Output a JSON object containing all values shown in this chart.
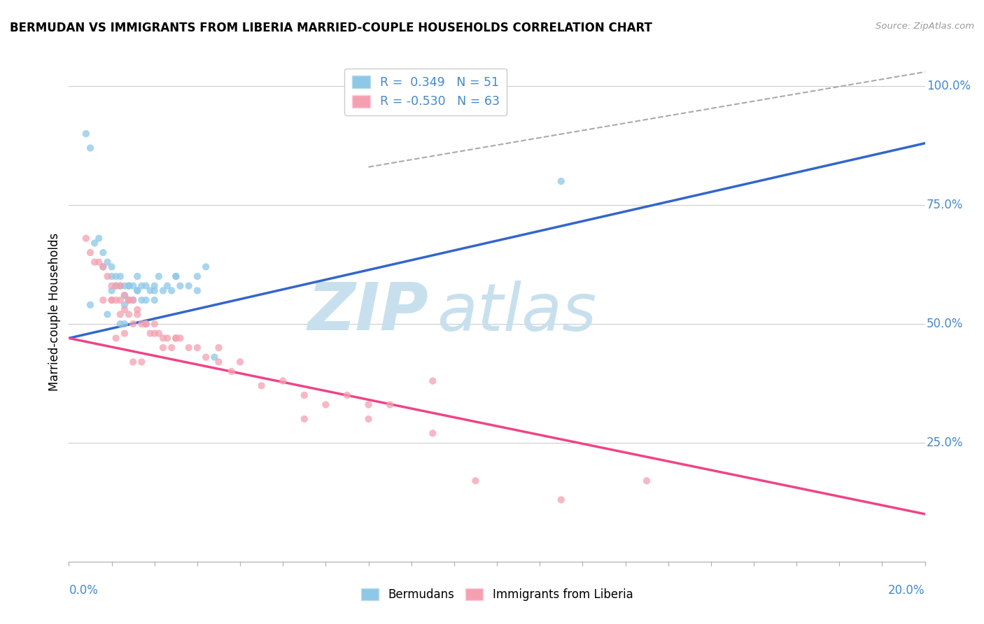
{
  "title": "BERMUDAN VS IMMIGRANTS FROM LIBERIA MARRIED-COUPLE HOUSEHOLDS CORRELATION CHART",
  "source_text": "Source: ZipAtlas.com",
  "ylabel": "Married-couple Households",
  "xlim": [
    0.0,
    20.0
  ],
  "ylim": [
    0.0,
    105.0
  ],
  "ytick_values": [
    25.0,
    50.0,
    75.0,
    100.0
  ],
  "legend_r1": "R =  0.349",
  "legend_n1": "N = 51",
  "legend_r2": "R = -0.530",
  "legend_n2": "N = 63",
  "blue_scatter_color": "#8DC8E8",
  "pink_scatter_color": "#F4A0B0",
  "blue_line_color": "#3366CC",
  "pink_line_color": "#EE4488",
  "dash_line_color": "#AAAAAA",
  "watermark_zip": "ZIP",
  "watermark_atlas": "atlas",
  "watermark_color": "#C8E0EE",
  "label_color": "#4488CC",
  "blue_line_x": [
    0,
    20
  ],
  "blue_line_y": [
    47,
    88
  ],
  "pink_line_x": [
    0,
    20
  ],
  "pink_line_y": [
    47,
    10
  ],
  "dash_line_x": [
    7,
    20
  ],
  "dash_line_y": [
    83,
    103
  ],
  "blue_scatter_x": [
    0.4,
    0.5,
    0.7,
    0.8,
    0.9,
    1.0,
    1.0,
    1.1,
    1.1,
    1.2,
    1.2,
    1.3,
    1.3,
    1.3,
    1.4,
    1.4,
    1.5,
    1.5,
    1.6,
    1.6,
    1.7,
    1.7,
    1.8,
    1.8,
    1.9,
    2.0,
    2.0,
    2.1,
    2.2,
    2.3,
    2.4,
    2.5,
    2.6,
    2.8,
    3.0,
    3.2,
    3.4,
    0.6,
    0.8,
    1.0,
    1.2,
    1.4,
    1.6,
    1.8,
    2.0,
    2.5,
    3.0,
    11.5,
    0.5,
    0.9,
    1.3
  ],
  "blue_scatter_y": [
    90,
    87,
    68,
    65,
    63,
    62,
    60,
    60,
    58,
    60,
    58,
    58,
    56,
    54,
    58,
    55,
    58,
    55,
    60,
    57,
    58,
    55,
    58,
    55,
    57,
    58,
    55,
    60,
    57,
    58,
    57,
    60,
    58,
    58,
    60,
    62,
    43,
    67,
    62,
    57,
    50,
    58,
    57,
    50,
    57,
    60,
    57,
    80,
    54,
    52,
    50
  ],
  "pink_scatter_x": [
    0.4,
    0.5,
    0.6,
    0.7,
    0.8,
    0.9,
    1.0,
    1.0,
    1.1,
    1.1,
    1.2,
    1.2,
    1.3,
    1.3,
    1.4,
    1.4,
    1.5,
    1.5,
    1.6,
    1.7,
    1.8,
    1.9,
    2.0,
    2.1,
    2.2,
    2.3,
    2.4,
    2.5,
    2.6,
    2.8,
    3.0,
    3.2,
    3.5,
    3.8,
    4.0,
    4.5,
    5.0,
    5.5,
    6.0,
    6.5,
    7.0,
    7.5,
    8.5,
    1.0,
    1.2,
    1.4,
    1.6,
    1.8,
    2.0,
    2.5,
    3.5,
    5.5,
    7.0,
    8.5,
    9.5,
    11.5,
    13.5,
    0.8,
    1.1,
    1.3,
    1.5,
    1.7,
    2.2
  ],
  "pink_scatter_y": [
    68,
    65,
    63,
    63,
    62,
    60,
    58,
    55,
    58,
    55,
    58,
    55,
    56,
    53,
    55,
    52,
    55,
    50,
    53,
    50,
    50,
    48,
    50,
    48,
    47,
    47,
    45,
    47,
    47,
    45,
    45,
    43,
    45,
    40,
    42,
    37,
    38,
    35,
    33,
    35,
    33,
    33,
    38,
    55,
    52,
    55,
    52,
    50,
    48,
    47,
    42,
    30,
    30,
    27,
    17,
    13,
    17,
    55,
    47,
    48,
    42,
    42,
    45
  ]
}
